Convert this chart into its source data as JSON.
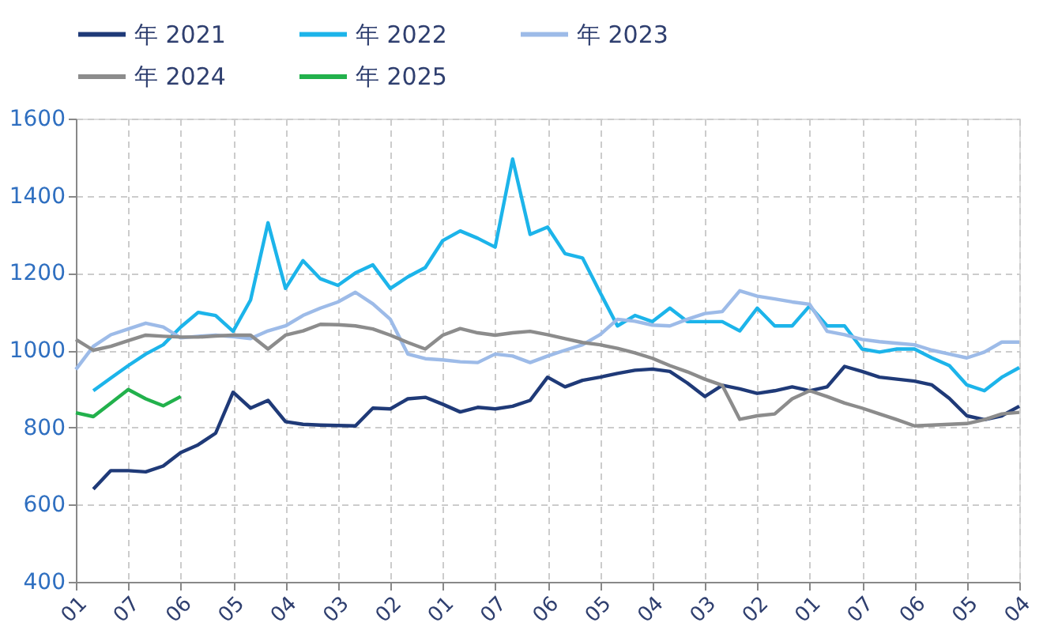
{
  "chart_data": {
    "type": "line",
    "legend": "top",
    "grid": true,
    "categories": [
      "01",
      null,
      null,
      "07",
      null,
      null,
      "06",
      null,
      null,
      "05",
      null,
      null,
      "04",
      null,
      null,
      "03",
      null,
      null,
      "02",
      null,
      null,
      "01",
      null,
      null,
      "07",
      null,
      null,
      "06",
      null,
      null,
      "05",
      null,
      null,
      "04",
      null,
      null,
      "03",
      null,
      null,
      "02",
      null,
      null,
      "01",
      null,
      null,
      "07",
      null,
      null,
      "06",
      null,
      null,
      "05",
      null,
      null,
      "04"
    ],
    "ylim": [
      400,
      1600
    ],
    "yticks": [
      400,
      600,
      800,
      1000,
      1200,
      1400,
      1600
    ],
    "series": [
      {
        "name": "年 2021",
        "color": "#1f3a78",
        "values": [
          null,
          640,
          688,
          688,
          685,
          700,
          735,
          755,
          785,
          891,
          850,
          870,
          815,
          808,
          806,
          805,
          804,
          850,
          848,
          874,
          878,
          860,
          840,
          852,
          848,
          855,
          870,
          930,
          905,
          922,
          930,
          940,
          948,
          951,
          945,
          915,
          880,
          909,
          900,
          888,
          895,
          905,
          895,
          905,
          958,
          945,
          930,
          925,
          920,
          910,
          875,
          830,
          820,
          830,
          855
        ]
      },
      {
        "name": "年 2022",
        "color": "#1cb4ea",
        "values": [
          null,
          895,
          928,
          960,
          990,
          1014,
          1060,
          1098,
          1090,
          1049,
          1130,
          1330,
          1160,
          1232,
          1185,
          1168,
          1200,
          1221,
          1160,
          1190,
          1214,
          1284,
          1309,
          1290,
          1267,
          1495,
          1300,
          1319,
          1250,
          1239,
          1150,
          1063,
          1090,
          1074,
          1109,
          1074,
          1074,
          1074,
          1050,
          1109,
          1063,
          1063,
          1115,
          1063,
          1063,
          1003,
          995,
          1003,
          1003,
          980,
          960,
          910,
          895,
          930,
          955
        ]
      },
      {
        "name": "年 2023",
        "color": "#9dbbe8",
        "values": [
          950,
          1010,
          1040,
          1055,
          1070,
          1060,
          1032,
          1036,
          1039,
          1035,
          1030,
          1050,
          1063,
          1090,
          1109,
          1125,
          1150,
          1120,
          1080,
          990,
          978,
          975,
          970,
          968,
          990,
          985,
          968,
          985,
          1000,
          1014,
          1040,
          1080,
          1075,
          1065,
          1063,
          1080,
          1095,
          1100,
          1154,
          1140,
          1133,
          1125,
          1119,
          1049,
          1040,
          1028,
          1022,
          1018,
          1014,
          1000,
          990,
          980,
          995,
          1021,
          1021
        ]
      },
      {
        "name": "年 2024",
        "color": "#8c8c8c",
        "values": [
          1028,
          1000,
          1010,
          1025,
          1039,
          1036,
          1034,
          1034,
          1037,
          1039,
          1039,
          1003,
          1039,
          1050,
          1067,
          1066,
          1063,
          1055,
          1039,
          1020,
          1003,
          1039,
          1056,
          1045,
          1039,
          1045,
          1049,
          1040,
          1030,
          1020,
          1014,
          1005,
          993,
          979,
          960,
          944,
          925,
          909,
          821,
          830,
          835,
          874,
          895,
          880,
          863,
          850,
          835,
          820,
          804,
          806,
          808,
          810,
          820,
          835,
          839
        ]
      },
      {
        "name": "年 2025",
        "color": "#22b14c",
        "values": [
          838,
          828,
          863,
          898,
          874,
          856,
          880,
          null,
          null,
          null,
          null,
          null,
          null,
          null,
          null,
          null,
          null,
          null,
          null,
          null,
          null,
          null,
          null,
          null,
          null,
          null,
          null,
          null,
          null,
          null,
          null,
          null,
          null,
          null,
          null,
          null,
          null,
          null,
          null,
          null,
          null,
          null,
          null,
          null,
          null,
          null,
          null,
          null,
          null,
          null,
          null,
          null,
          null,
          null,
          null
        ]
      }
    ]
  }
}
